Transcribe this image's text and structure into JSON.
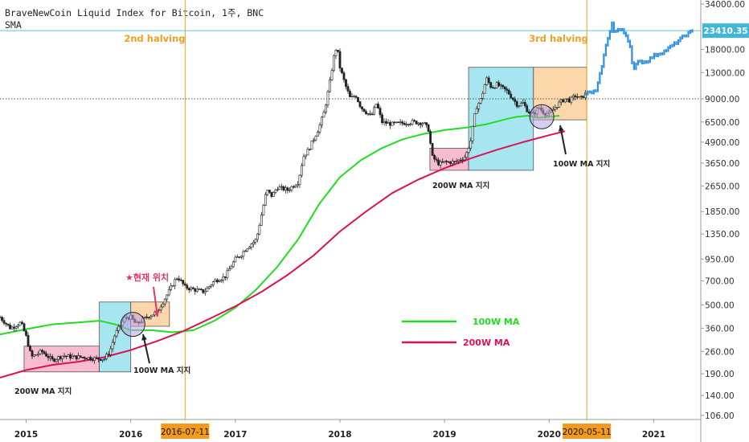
{
  "chart_data": {
    "type": "line",
    "title": "BraveNewCoin Liquid Index for Bitcoin, 1주, BNC",
    "subtitle": "SMA",
    "y_scale": "log",
    "ylim": [
      100,
      36000
    ],
    "y_ticks": [
      "34000.00",
      "18000.00",
      "13000.00",
      "9000.00",
      "6500.00",
      "4900.00",
      "3650.00",
      "2650.00",
      "1850.00",
      "1350.00",
      "950.00",
      "700.00",
      "500.00",
      "360.00",
      "260.00",
      "190.00",
      "140.00",
      "106.00"
    ],
    "x_ticks": [
      "2015",
      "2016",
      "2017",
      "2018",
      "2019",
      "2020",
      "2021"
    ],
    "x_range": [
      2014.75,
      2021.45
    ],
    "current_price": "23410.35",
    "current_price_value": 23410,
    "dotted_level": 9000,
    "price": {
      "x": [
        2014.75,
        2014.85,
        2014.95,
        2015.0,
        2015.05,
        2015.15,
        2015.25,
        2015.35,
        2015.45,
        2015.55,
        2015.65,
        2015.75,
        2015.8,
        2015.85,
        2015.95,
        2016.0,
        2016.05,
        2016.15,
        2016.25,
        2016.35,
        2016.42,
        2016.45,
        2016.52,
        2016.6,
        2016.7,
        2016.8,
        2016.9,
        2017.0,
        2017.05,
        2017.1,
        2017.2,
        2017.3,
        2017.35,
        2017.4,
        2017.5,
        2017.6,
        2017.65,
        2017.7,
        2017.8,
        2017.85,
        2017.9,
        2017.94,
        2017.97,
        2018.0,
        2018.05,
        2018.1,
        2018.15,
        2018.2,
        2018.3,
        2018.35,
        2018.4,
        2018.5,
        2018.6,
        2018.7,
        2018.8,
        2018.85,
        2018.88,
        2018.95,
        2019.0,
        2019.1,
        2019.2,
        2019.25,
        2019.3,
        2019.35,
        2019.4,
        2019.45,
        2019.5,
        2019.6,
        2019.7,
        2019.75,
        2019.8,
        2019.85,
        2019.9,
        2019.95,
        2020.0,
        2020.1,
        2020.15,
        2020.2,
        2020.25,
        2020.3,
        2020.35
      ],
      "y": [
        420,
        360,
        390,
        320,
        240,
        260,
        230,
        245,
        240,
        240,
        235,
        235,
        260,
        330,
        420,
        420,
        380,
        420,
        450,
        580,
        700,
        740,
        640,
        620,
        600,
        700,
        740,
        950,
        1000,
        1100,
        1250,
        2500,
        2300,
        2600,
        2500,
        2800,
        4000,
        4400,
        6000,
        7500,
        11000,
        16000,
        19000,
        14000,
        11000,
        9000,
        9500,
        8000,
        7000,
        8500,
        6500,
        6300,
        6400,
        6500,
        6400,
        5800,
        4000,
        3600,
        3700,
        3700,
        4000,
        5000,
        7900,
        9000,
        12000,
        10500,
        11000,
        10000,
        8200,
        8500,
        7500,
        7200,
        8000,
        7400,
        7300,
        8500,
        9000,
        8800,
        9400,
        9000,
        9700
      ]
    },
    "projection": {
      "x": [
        2020.35,
        2020.45,
        2020.5,
        2020.55,
        2020.6,
        2020.62,
        2020.7,
        2020.75,
        2020.78,
        2020.8,
        2020.85,
        2020.9,
        2020.95,
        2021.0,
        2021.1,
        2021.2,
        2021.3,
        2021.38
      ],
      "y": [
        9700,
        10000,
        14000,
        20000,
        26000,
        23000,
        24000,
        21000,
        18000,
        13000,
        15500,
        15000,
        15500,
        16500,
        17500,
        19500,
        22000,
        23400
      ]
    },
    "series": [
      {
        "name": "100W MA",
        "color": "#22dd22",
        "x": [
          2014.75,
          2015.0,
          2015.25,
          2015.5,
          2015.7,
          2015.85,
          2016.0,
          2016.2,
          2016.4,
          2016.6,
          2016.8,
          2017.0,
          2017.2,
          2017.4,
          2017.6,
          2017.8,
          2018.0,
          2018.2,
          2018.4,
          2018.6,
          2018.8,
          2019.0,
          2019.2,
          2019.4,
          2019.6,
          2019.7,
          2019.8,
          2019.9,
          2020.0,
          2020.1
        ],
        "y": [
          330,
          355,
          380,
          390,
          400,
          380,
          350,
          350,
          340,
          350,
          400,
          480,
          620,
          850,
          1250,
          2050,
          3000,
          3800,
          4500,
          5100,
          5500,
          5800,
          6000,
          6300,
          6800,
          7000,
          7100,
          6900,
          7000,
          7100
        ]
      },
      {
        "name": "200W MA",
        "color": "#dd1155",
        "x": [
          2014.75,
          2015.0,
          2015.25,
          2015.5,
          2015.75,
          2016.0,
          2016.25,
          2016.5,
          2016.75,
          2017.0,
          2017.25,
          2017.5,
          2017.75,
          2018.0,
          2018.25,
          2018.5,
          2018.75,
          2019.0,
          2019.25,
          2019.5,
          2019.75,
          2020.0,
          2020.15
        ],
        "y": [
          180,
          200,
          215,
          225,
          240,
          265,
          300,
          345,
          410,
          490,
          600,
          760,
          1000,
          1400,
          1850,
          2400,
          2900,
          3400,
          3900,
          4400,
          4900,
          5400,
          5700
        ]
      }
    ],
    "regions": [
      {
        "color": "pink",
        "x": [
          2014.98,
          2015.7
        ],
        "y": [
          195,
          280
        ]
      },
      {
        "color": "cyan",
        "x": [
          2015.7,
          2016.0
        ],
        "y": [
          195,
          520
        ]
      },
      {
        "color": "orange",
        "x": [
          2016.0,
          2016.37
        ],
        "y": [
          370,
          520
        ]
      },
      {
        "color": "pink",
        "x": [
          2018.86,
          2019.23
        ],
        "y": [
          3300,
          4500
        ]
      },
      {
        "color": "cyan",
        "x": [
          2019.23,
          2019.85
        ],
        "y": [
          3300,
          14000
        ]
      },
      {
        "color": "orange",
        "x": [
          2019.85,
          2020.36
        ],
        "y": [
          6700,
          14000
        ]
      }
    ],
    "circles": [
      {
        "x": 2016.02,
        "y": 380
      },
      {
        "x": 2019.93,
        "y": 7000
      }
    ],
    "halvings": [
      {
        "label": "2nd halving",
        "date": "2016-07-11",
        "x": 2016.52
      },
      {
        "label": "3rd halving",
        "date": "2020-05-11",
        "x": 2020.36
      }
    ],
    "annotations": {
      "support_200w_1": "200W MA 지지",
      "support_100w_1": "100W MA 지지",
      "support_200w_2": "200W MA 지지",
      "support_100w_2": "100W MA 지지",
      "current_position": "★현재 위치"
    },
    "legend": {
      "placement": "center-right",
      "items": [
        "100W MA",
        "200W MA"
      ]
    }
  }
}
